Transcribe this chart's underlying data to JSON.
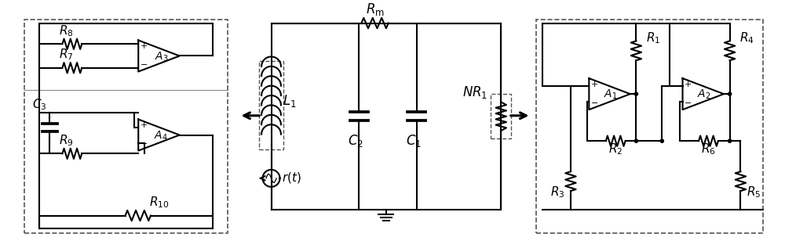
{
  "fig_width": 10.0,
  "fig_height": 3.17,
  "dpi": 100,
  "bg_color": "#ffffff",
  "line_color": "#000000",
  "line_width": 1.5,
  "labels": {
    "R8": "$R_8$",
    "R7": "$R_7$",
    "R9": "$R_9$",
    "R10": "$R_{10}$",
    "C3": "$C_3$",
    "A3": "$A_3$",
    "A4": "$A_4$",
    "L1": "$L_1$",
    "Rm": "$R_{\\mathrm{m}}$",
    "NR1": "$NR_1$",
    "C2": "$C_2$",
    "C1": "$C_1$",
    "rt": "$r(t)$",
    "R1": "$R_1$",
    "R2": "$R_2$",
    "R3": "$R_3$",
    "R4": "$R_4$",
    "R5": "$R_5$",
    "R6": "$R_6$",
    "A1": "$A_1$",
    "A2": "$A_2$"
  },
  "font_size": 11
}
